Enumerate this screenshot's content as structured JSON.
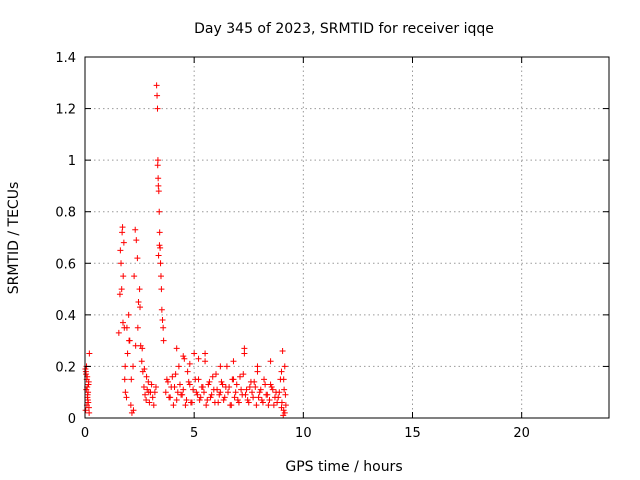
{
  "chart_data": {
    "type": "scatter",
    "title": "Day 345 of 2023, SRMTID for receiver iqqe",
    "xlabel": "GPS time / hours",
    "ylabel": "SRMTID / TECUs",
    "xlim": [
      0,
      24
    ],
    "ylim": [
      0,
      1.4
    ],
    "x_ticks": [
      0,
      5,
      10,
      15,
      20
    ],
    "x_tick_labels": [
      "0",
      "5",
      "10",
      "15",
      "20"
    ],
    "y_ticks": [
      0,
      0.2,
      0.4,
      0.6,
      0.8,
      1.0,
      1.2,
      1.4
    ],
    "y_tick_labels": [
      "0",
      "0.2",
      "0.4",
      "0.6",
      "0.8",
      "1",
      "1.2",
      "1.4"
    ],
    "grid": true,
    "marker": "plus",
    "color": "#ff0000",
    "series": [
      {
        "x": [
          0.02,
          0.05,
          0.08,
          0.1,
          0.12,
          0.15,
          0.18,
          0.2,
          0.03,
          0.07,
          0.11,
          0.14,
          0.17,
          0.06,
          0.09,
          0.13,
          0.16,
          0.19,
          0.04,
          0.1,
          1.55,
          1.6,
          1.65,
          1.7,
          1.72,
          1.75,
          1.78,
          1.8,
          1.82,
          1.85,
          1.9,
          1.95,
          2.0,
          2.05,
          2.1,
          2.15,
          2.2,
          2.25,
          2.3,
          2.35,
          2.4,
          2.45,
          2.5,
          2.55,
          2.6,
          2.65,
          2.7,
          2.75,
          2.8,
          2.85,
          2.9,
          2.95,
          3.0,
          3.05,
          3.1,
          3.15,
          3.2,
          3.25,
          1.62,
          1.68,
          1.74,
          1.84,
          1.92,
          2.02,
          2.12,
          2.22,
          2.32,
          2.42,
          2.52,
          2.62,
          2.72,
          2.82,
          2.92,
          3.28,
          3.3,
          3.32,
          3.34,
          3.35,
          3.36,
          3.38,
          3.4,
          3.42,
          3.44,
          3.46,
          3.48,
          3.5,
          3.52,
          3.55,
          3.58,
          3.6,
          3.33,
          3.37,
          3.41,
          3.7,
          3.8,
          3.9,
          4.0,
          4.1,
          4.2,
          4.3,
          4.4,
          4.5,
          4.6,
          4.7,
          4.8,
          4.9,
          5.0,
          5.1,
          5.2,
          5.3,
          5.4,
          5.5,
          5.6,
          5.7,
          5.8,
          5.9,
          6.0,
          6.1,
          6.2,
          6.3,
          6.4,
          6.5,
          6.6,
          6.7,
          6.8,
          6.9,
          7.0,
          7.1,
          7.2,
          7.3,
          7.4,
          7.5,
          7.6,
          7.7,
          7.8,
          7.9,
          8.0,
          8.1,
          8.2,
          8.3,
          8.4,
          8.5,
          8.6,
          8.7,
          8.8,
          8.9,
          9.0,
          9.05,
          9.1,
          9.15,
          9.2,
          3.75,
          3.85,
          3.95,
          4.05,
          4.15,
          4.25,
          4.35,
          4.45,
          4.55,
          4.65,
          4.75,
          4.85,
          4.95,
          5.05,
          5.15,
          5.25,
          5.35,
          5.45,
          5.55,
          5.65,
          5.75,
          5.85,
          5.95,
          6.05,
          6.15,
          6.25,
          6.35,
          6.45,
          6.55,
          6.65,
          6.75,
          6.85,
          6.95,
          7.05,
          7.15,
          7.25,
          7.35,
          7.45,
          7.55,
          7.65,
          7.75,
          7.85,
          7.95,
          8.05,
          8.15,
          8.25,
          8.35,
          8.45,
          8.55,
          8.65,
          8.75,
          8.85,
          8.95,
          9.02,
          9.08,
          9.12,
          9.18,
          4.2,
          4.5,
          4.8,
          5.2,
          5.5,
          6.2,
          6.8,
          7.3,
          7.9,
          8.5,
          9.0,
          9.1,
          9.15
        ],
        "y": [
          0.19,
          0.17,
          0.15,
          0.12,
          0.09,
          0.06,
          0.04,
          0.25,
          0.03,
          0.2,
          0.08,
          0.1,
          0.14,
          0.11,
          0.05,
          0.07,
          0.13,
          0.02,
          0.18,
          0.16,
          0.33,
          0.48,
          0.6,
          0.72,
          0.74,
          0.55,
          0.68,
          0.35,
          0.15,
          0.1,
          0.08,
          0.25,
          0.4,
          0.3,
          0.05,
          0.02,
          0.2,
          0.55,
          0.73,
          0.69,
          0.62,
          0.45,
          0.5,
          0.28,
          0.22,
          0.18,
          0.12,
          0.09,
          0.07,
          0.11,
          0.14,
          0.06,
          0.1,
          0.13,
          0.08,
          0.05,
          0.1,
          0.12,
          0.65,
          0.5,
          0.37,
          0.2,
          0.35,
          0.3,
          0.15,
          0.03,
          0.28,
          0.35,
          0.43,
          0.27,
          0.19,
          0.16,
          0.1,
          1.29,
          1.25,
          1.2,
          1.0,
          0.93,
          0.9,
          0.88,
          0.8,
          0.72,
          0.66,
          0.6,
          0.55,
          0.5,
          0.42,
          0.38,
          0.35,
          0.3,
          0.98,
          0.63,
          0.67,
          0.1,
          0.14,
          0.08,
          0.16,
          0.12,
          0.07,
          0.2,
          0.09,
          0.11,
          0.05,
          0.18,
          0.13,
          0.06,
          0.25,
          0.1,
          0.15,
          0.08,
          0.12,
          0.22,
          0.07,
          0.14,
          0.09,
          0.11,
          0.17,
          0.06,
          0.1,
          0.13,
          0.08,
          0.2,
          0.12,
          0.05,
          0.15,
          0.1,
          0.07,
          0.16,
          0.09,
          0.25,
          0.11,
          0.06,
          0.14,
          0.08,
          0.12,
          0.18,
          0.1,
          0.07,
          0.15,
          0.09,
          0.05,
          0.13,
          0.11,
          0.08,
          0.06,
          0.1,
          0.04,
          0.26,
          0.03,
          0.02,
          0.05,
          0.15,
          0.08,
          0.12,
          0.05,
          0.17,
          0.1,
          0.13,
          0.09,
          0.23,
          0.07,
          0.14,
          0.06,
          0.11,
          0.15,
          0.09,
          0.07,
          0.12,
          0.1,
          0.05,
          0.13,
          0.08,
          0.16,
          0.06,
          0.11,
          0.09,
          0.14,
          0.07,
          0.12,
          0.1,
          0.05,
          0.15,
          0.08,
          0.13,
          0.06,
          0.11,
          0.17,
          0.09,
          0.07,
          0.12,
          0.1,
          0.14,
          0.05,
          0.08,
          0.11,
          0.06,
          0.13,
          0.09,
          0.07,
          0.12,
          0.05,
          0.1,
          0.08,
          0.15,
          0.06,
          0.01,
          0.11,
          0.09,
          0.27,
          0.24,
          0.21,
          0.23,
          0.25,
          0.2,
          0.22,
          0.27,
          0.2,
          0.22,
          0.18,
          0.15,
          0.2
        ]
      }
    ]
  }
}
